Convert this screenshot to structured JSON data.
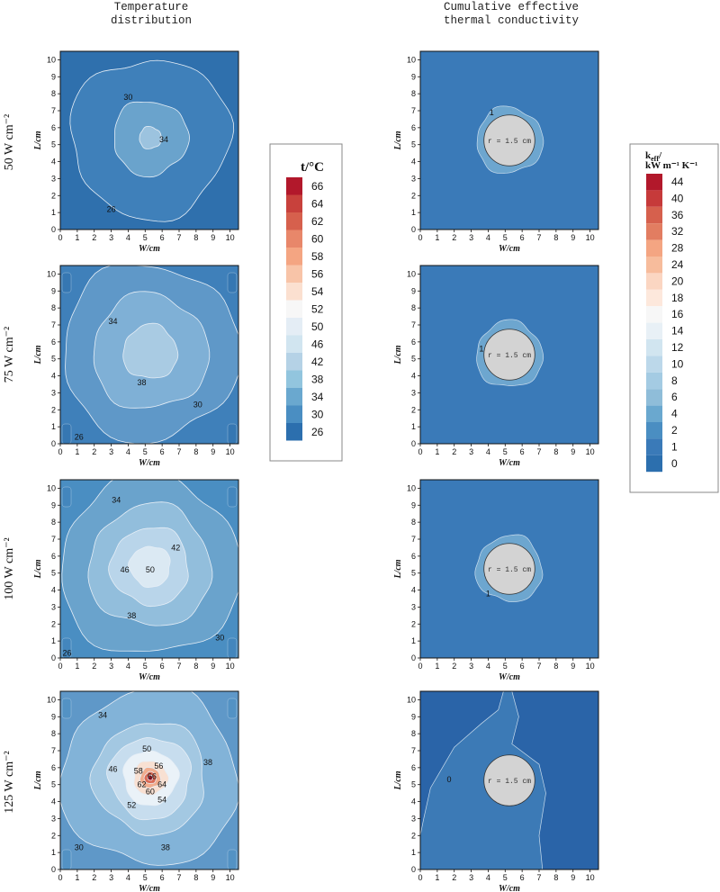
{
  "chart_data": {
    "type": "contour",
    "columns": [
      "Temperature distribution",
      "Cumulative effective thermal conductivity"
    ],
    "column_title_lines": [
      [
        "Temperature",
        "distribution"
      ],
      [
        "Cumulative effective",
        "thermal conductivity"
      ]
    ],
    "rows": [
      "50 W cm⁻²",
      "75 W cm⁻²",
      "100 W cm⁻²",
      "125 W cm⁻²"
    ],
    "xlabel": "W/cm",
    "ylabel": "L/cm",
    "xlim": [
      0,
      10.5
    ],
    "ylim": [
      0,
      10.5
    ],
    "x_ticks": [
      0,
      1,
      2,
      3,
      4,
      5,
      6,
      7,
      8,
      9,
      10
    ],
    "y_ticks": [
      0,
      1,
      2,
      3,
      4,
      5,
      6,
      7,
      8,
      9,
      10
    ],
    "hole_label": "r = 1.5 cm",
    "hole_center": [
      5.25,
      5.25
    ],
    "hole_radius": 1.5,
    "temperature_colorbar": {
      "title": "t/°C",
      "levels": [
        66,
        64,
        62,
        60,
        58,
        56,
        54,
        52,
        50,
        46,
        42,
        38,
        34,
        30,
        26
      ],
      "colors": [
        "#b2182b",
        "#c8413c",
        "#d6604d",
        "#e8876a",
        "#f4a582",
        "#f8c4a8",
        "#fbe0d0",
        "#f7f7f7",
        "#e4edf5",
        "#d1e5f0",
        "#b5d2e6",
        "#92c5de",
        "#6aa8cf",
        "#4a8ec2",
        "#2c6fae"
      ]
    },
    "conductivity_colorbar": {
      "title_line1": "k",
      "title_sub": "eff",
      "title_line2": "kW m⁻¹ K⁻¹",
      "levels": [
        44,
        40,
        36,
        32,
        28,
        24,
        20,
        18,
        16,
        14,
        12,
        10,
        8,
        6,
        4,
        2,
        1,
        0
      ],
      "colors": [
        "#b2182b",
        "#c63a3a",
        "#d6604d",
        "#e27d61",
        "#f4a582",
        "#f7bc9c",
        "#fbd6c2",
        "#fde8dc",
        "#f7f7f7",
        "#e8f0f6",
        "#d1e5f0",
        "#bcd8ea",
        "#a4cbe3",
        "#8fbdd9",
        "#6aa8cf",
        "#4a8ec2",
        "#3a7ab8",
        "#2c6fae"
      ]
    },
    "temperature_panels": [
      {
        "row": "50 W cm⁻²",
        "background": "#2f70ad",
        "rings": [
          {
            "r": 4.7,
            "color": "#3f80ba"
          },
          {
            "r": 2.2,
            "color": "#6aa3cc"
          },
          {
            "r": 0.65,
            "color": "#9cc3df"
          }
        ],
        "labels": [
          {
            "text": "30",
            "x": 4.0,
            "y": 7.8
          },
          {
            "text": "34",
            "x": 6.1,
            "y": 5.3
          },
          {
            "text": "26",
            "x": 3.0,
            "y": 1.2
          }
        ]
      },
      {
        "row": "75 W cm⁻²",
        "background": "#3f80ba",
        "rings": [
          {
            "r": 5.2,
            "color": "#5f98c8"
          },
          {
            "r": 3.4,
            "color": "#7fb0d6"
          },
          {
            "r": 1.6,
            "color": "#a9cbe3"
          }
        ],
        "labels": [
          {
            "text": "34",
            "x": 3.1,
            "y": 7.2
          },
          {
            "text": "38",
            "x": 4.8,
            "y": 3.6
          },
          {
            "text": "30",
            "x": 8.1,
            "y": 2.3
          },
          {
            "text": "26",
            "x": 1.1,
            "y": 0.4
          }
        ]
      },
      {
        "row": "100 W cm⁻²",
        "background": "#4a8ec2",
        "rings": [
          {
            "r": 5.3,
            "color": "#6aa3cc"
          },
          {
            "r": 3.6,
            "color": "#92bedc"
          },
          {
            "r": 2.3,
            "color": "#b9d5ea"
          },
          {
            "r": 1.2,
            "color": "#dbe9f3"
          }
        ],
        "labels": [
          {
            "text": "34",
            "x": 3.3,
            "y": 9.3
          },
          {
            "text": "42",
            "x": 6.8,
            "y": 6.5
          },
          {
            "text": "46",
            "x": 3.8,
            "y": 5.2
          },
          {
            "text": "50",
            "x": 5.3,
            "y": 5.2
          },
          {
            "text": "38",
            "x": 4.2,
            "y": 2.5
          },
          {
            "text": "30",
            "x": 9.4,
            "y": 1.2
          },
          {
            "text": "26",
            "x": 0.4,
            "y": 0.3
          }
        ]
      },
      {
        "row": "125 W cm⁻²",
        "background": "#5f98c8",
        "rings": [
          {
            "r": 5.2,
            "color": "#82b3d8"
          },
          {
            "r": 3.3,
            "color": "#a3c8e2"
          },
          {
            "r": 2.4,
            "color": "#c7ddee"
          },
          {
            "r": 1.6,
            "color": "#eaf2f8"
          },
          {
            "r": 1.0,
            "color": "#f8e0d2"
          },
          {
            "r": 0.6,
            "color": "#f1ad8e"
          },
          {
            "r": 0.35,
            "color": "#da6a55"
          },
          {
            "r": 0.15,
            "color": "#b2182b"
          }
        ],
        "labels": [
          {
            "text": "34",
            "x": 2.5,
            "y": 9.1
          },
          {
            "text": "50",
            "x": 5.1,
            "y": 7.1
          },
          {
            "text": "38",
            "x": 8.7,
            "y": 6.3
          },
          {
            "text": "46",
            "x": 3.1,
            "y": 5.9
          },
          {
            "text": "58",
            "x": 4.6,
            "y": 5.8
          },
          {
            "text": "56",
            "x": 5.8,
            "y": 6.1
          },
          {
            "text": "66",
            "x": 5.4,
            "y": 5.5
          },
          {
            "text": "62",
            "x": 4.8,
            "y": 5.0
          },
          {
            "text": "64",
            "x": 6.0,
            "y": 5.0
          },
          {
            "text": "60",
            "x": 5.3,
            "y": 4.6
          },
          {
            "text": "54",
            "x": 6.0,
            "y": 4.1
          },
          {
            "text": "52",
            "x": 4.2,
            "y": 3.8
          },
          {
            "text": "30",
            "x": 1.1,
            "y": 1.3
          },
          {
            "text": "38",
            "x": 6.2,
            "y": 1.3
          }
        ]
      }
    ],
    "conductivity_panels": [
      {
        "row": "50 W cm⁻²",
        "background": "#3a7ab8",
        "label": {
          "text": "1",
          "x": 4.2,
          "y": 6.9
        }
      },
      {
        "row": "75 W cm⁻²",
        "background": "#3a7ab8",
        "label": {
          "text": "1",
          "x": 3.6,
          "y": 5.6
        }
      },
      {
        "row": "100 W cm⁻²",
        "background": "#3a7ab8",
        "label": {
          "text": "1",
          "x": 4.0,
          "y": 3.8
        }
      },
      {
        "row": "125 W cm⁻²",
        "background": "#2a64a8",
        "label": {
          "text": "0",
          "x": 1.7,
          "y": 5.3
        }
      }
    ]
  }
}
